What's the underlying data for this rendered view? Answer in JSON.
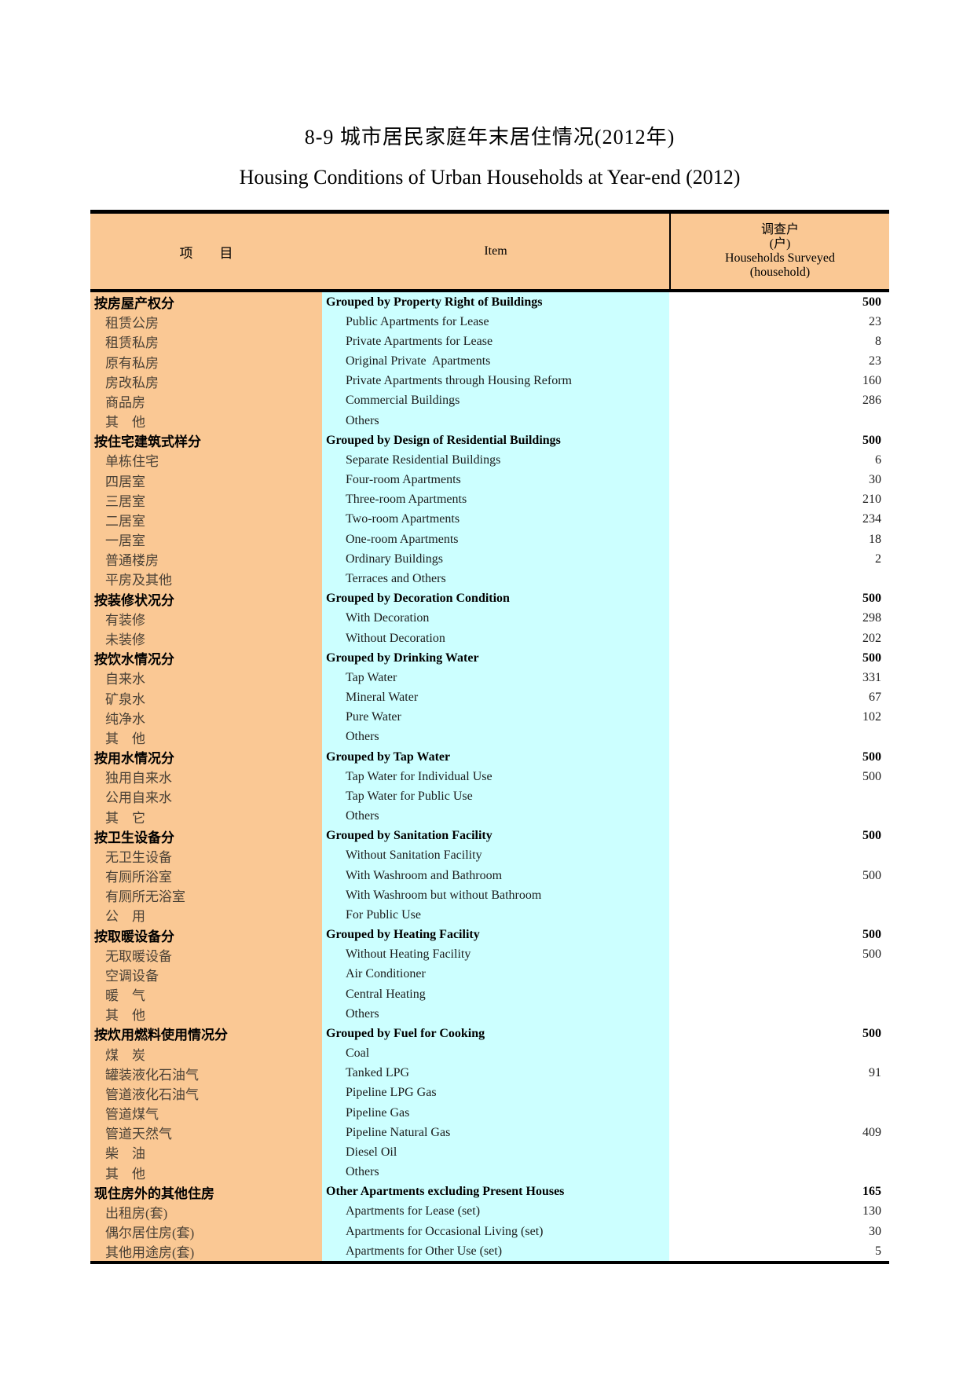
{
  "page": {
    "title_cn": "8-9 城市居民家庭年末居住情况(2012年)",
    "title_en": "Housing Conditions of Urban Households at Year-end (2012)"
  },
  "table": {
    "header": {
      "col1": "项　　目",
      "col2": "Item",
      "col3_lines": [
        "调查户",
        "(户)",
        "Households Surveyed",
        "(household)"
      ]
    },
    "colors": {
      "col1_bg": "#FAC894",
      "col2_bg": "#CCFFFF",
      "border": "#000000"
    },
    "rows": [
      {
        "cn": "按房屋产权分",
        "en": "Grouped by Property Right of Buildings",
        "val": "500",
        "type": "section"
      },
      {
        "cn": "租赁公房",
        "en": "Public Apartments for Lease",
        "val": "23",
        "type": "sub"
      },
      {
        "cn": "租赁私房",
        "en": "Private Apartments for Lease",
        "val": "8",
        "type": "sub"
      },
      {
        "cn": "原有私房",
        "en": "Original Private  Apartments",
        "val": "23",
        "type": "sub"
      },
      {
        "cn": "房改私房",
        "en": "Private Apartments through Housing Reform",
        "val": "160",
        "type": "sub"
      },
      {
        "cn": "商品房",
        "en": "Commercial Buildings",
        "val": "286",
        "type": "sub"
      },
      {
        "cn": "其　他",
        "en": "Others",
        "val": "",
        "type": "sub"
      },
      {
        "cn": "按住宅建筑式样分",
        "en": "Grouped by Design of Residential Buildings",
        "val": "500",
        "type": "section"
      },
      {
        "cn": "单栋住宅",
        "en": "Separate Residential Buildings",
        "val": "6",
        "type": "sub"
      },
      {
        "cn": "四居室",
        "en": "Four-room Apartments",
        "val": "30",
        "type": "sub"
      },
      {
        "cn": "三居室",
        "en": "Three-room Apartments",
        "val": "210",
        "type": "sub"
      },
      {
        "cn": "二居室",
        "en": "Two-room Apartments",
        "val": "234",
        "type": "sub"
      },
      {
        "cn": "一居室",
        "en": "One-room Apartments",
        "val": "18",
        "type": "sub"
      },
      {
        "cn": "普通楼房",
        "en": "Ordinary Buildings",
        "val": "2",
        "type": "sub"
      },
      {
        "cn": "平房及其他",
        "en": "Terraces and Others",
        "val": "",
        "type": "sub"
      },
      {
        "cn": "按装修状况分",
        "en": "Grouped by Decoration Condition",
        "val": "500",
        "type": "section"
      },
      {
        "cn": "有装修",
        "en": "With Decoration",
        "val": "298",
        "type": "sub"
      },
      {
        "cn": "未装修",
        "en": "Without Decoration",
        "val": "202",
        "type": "sub"
      },
      {
        "cn": "按饮水情况分",
        "en": "Grouped by Drinking Water",
        "val": "500",
        "type": "section"
      },
      {
        "cn": "自来水",
        "en": "Tap Water",
        "val": "331",
        "type": "sub"
      },
      {
        "cn": "矿泉水",
        "en": "Mineral Water",
        "val": "67",
        "type": "sub"
      },
      {
        "cn": "纯净水",
        "en": "Pure Water",
        "val": "102",
        "type": "sub"
      },
      {
        "cn": "其　他",
        "en": "Others",
        "val": "",
        "type": "sub"
      },
      {
        "cn": "按用水情况分",
        "en": "Grouped by Tap Water",
        "val": "500",
        "type": "section"
      },
      {
        "cn": "独用自来水",
        "en": "Tap Water for Individual Use",
        "val": "500",
        "type": "sub"
      },
      {
        "cn": "公用自来水",
        "en": "Tap Water for Public Use",
        "val": "",
        "type": "sub"
      },
      {
        "cn": "其　它",
        "en": "Others",
        "val": "",
        "type": "sub"
      },
      {
        "cn": "按卫生设备分",
        "en": "Grouped by Sanitation Facility",
        "val": "500",
        "type": "section"
      },
      {
        "cn": "无卫生设备",
        "en": "Without Sanitation Facility",
        "val": "",
        "type": "sub"
      },
      {
        "cn": "有厕所浴室",
        "en": "With Washroom and Bathroom",
        "val": "500",
        "type": "sub"
      },
      {
        "cn": "有厕所无浴室",
        "en": "With Washroom but without Bathroom",
        "val": "",
        "type": "sub"
      },
      {
        "cn": "公　用",
        "en": "For Public Use",
        "val": "",
        "type": "sub"
      },
      {
        "cn": "按取暖设备分",
        "en": "Grouped by Heating Facility",
        "val": "500",
        "type": "section"
      },
      {
        "cn": "无取暖设备",
        "en": "Without Heating Facility",
        "val": "500",
        "type": "sub"
      },
      {
        "cn": "空调设备",
        "en": "Air Conditioner",
        "val": "",
        "type": "sub"
      },
      {
        "cn": "暖　气",
        "en": "Central Heating",
        "val": "",
        "type": "sub"
      },
      {
        "cn": "其　他",
        "en": "Others",
        "val": "",
        "type": "sub"
      },
      {
        "cn": "按炊用燃料使用情况分",
        "en": "Grouped by Fuel for Cooking",
        "val": "500",
        "type": "section"
      },
      {
        "cn": "煤　炭",
        "en": "Coal",
        "val": "",
        "type": "sub"
      },
      {
        "cn": "罐装液化石油气",
        "en": "Tanked LPG",
        "val": "91",
        "type": "sub"
      },
      {
        "cn": "管道液化石油气",
        "en": "Pipeline LPG Gas",
        "val": "",
        "type": "sub"
      },
      {
        "cn": "管道煤气",
        "en": "Pipeline Gas",
        "val": "",
        "type": "sub"
      },
      {
        "cn": "管道天然气",
        "en": "Pipeline Natural Gas",
        "val": "409",
        "type": "sub"
      },
      {
        "cn": "柴　油",
        "en": "Diesel Oil",
        "val": "",
        "type": "sub"
      },
      {
        "cn": "其　他",
        "en": "Others",
        "val": "",
        "type": "sub"
      },
      {
        "cn": "现住房外的其他住房",
        "en": "Other Apartments excluding Present Houses",
        "val": "165",
        "type": "section"
      },
      {
        "cn": "出租房(套)",
        "en": "Apartments for Lease (set)",
        "val": "130",
        "type": "sub"
      },
      {
        "cn": "偶尔居住房(套)",
        "en": "Apartments for Occasional Living (set)",
        "val": "30",
        "type": "sub"
      },
      {
        "cn": "其他用途房(套)",
        "en": "Apartments for Other Use (set)",
        "val": "5",
        "type": "sub"
      }
    ]
  }
}
